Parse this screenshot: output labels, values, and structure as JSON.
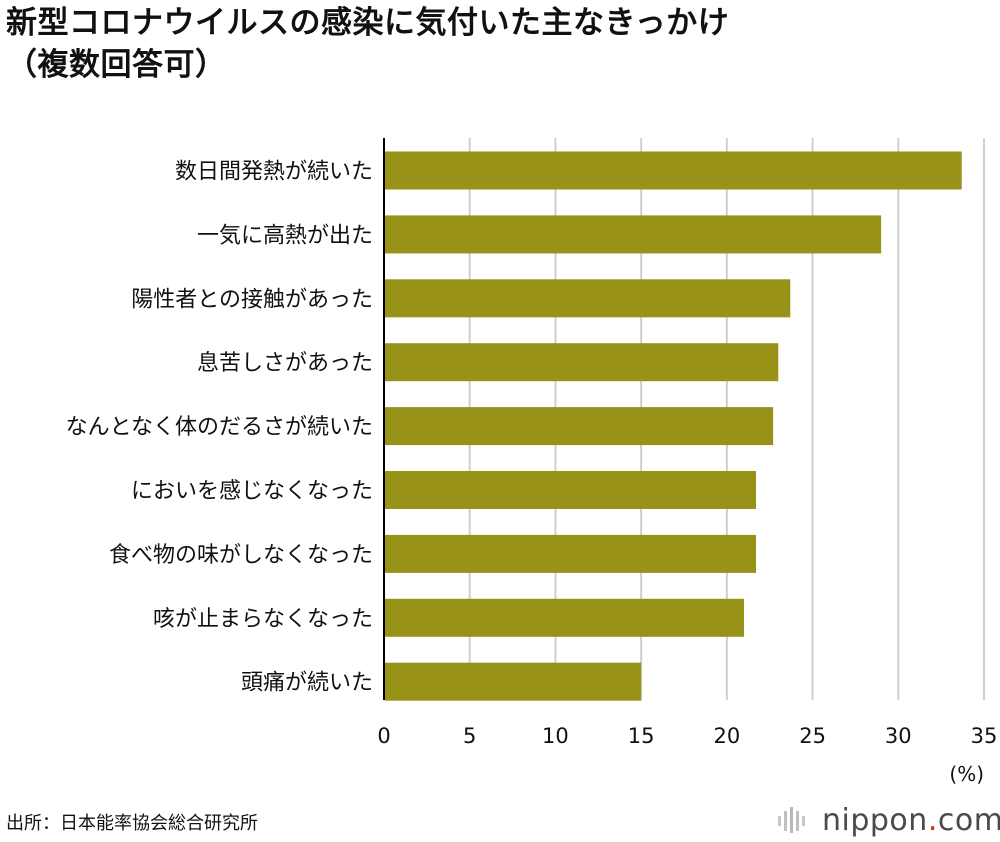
{
  "title_lines": [
    "新型コロナウイルスの感染に気付いた主なきっかけ",
    "（複数回答可）"
  ],
  "source": "出所：日本能率協会総合研究所",
  "logo": {
    "name": "nippon",
    "dot": ".",
    "domain": "com"
  },
  "colors": {
    "bar": "#999218",
    "grid": "#cfcfcf",
    "axis": "#000000",
    "logo_dot": "#d42b1e"
  },
  "chart_data": {
    "type": "bar",
    "orientation": "horizontal",
    "categories": [
      "数日間発熱が続いた",
      "一気に高熱が出た",
      "陽性者との接触があった",
      "息苦しさがあった",
      "なんとなく体のだるさが続いた",
      "においを感じなくなった",
      "食べ物の味がしなくなった",
      "咳が止まらなくなった",
      "頭痛が続いた"
    ],
    "values": [
      33.7,
      29.0,
      23.7,
      23.0,
      22.7,
      21.7,
      21.7,
      21.0,
      15.0
    ],
    "xlim": [
      0,
      35
    ],
    "xticks": [
      "0",
      "5",
      "10",
      "15",
      "20",
      "25",
      "30",
      "35"
    ],
    "unit_label": "(%)",
    "grid": true
  }
}
